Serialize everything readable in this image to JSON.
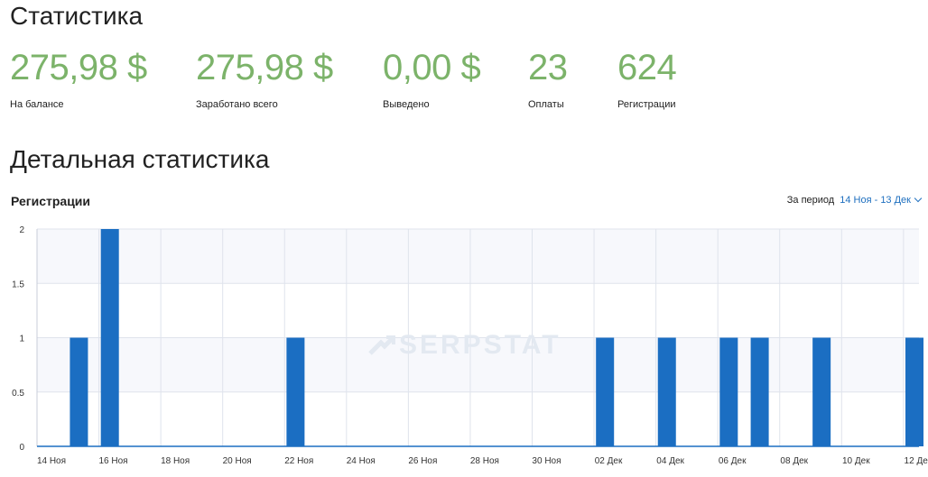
{
  "page": {
    "title": "Статистика"
  },
  "stats": [
    {
      "value": "275,98 $",
      "label": "На балансе"
    },
    {
      "value": "275,98 $",
      "label": "Заработано всего"
    },
    {
      "value": "0,00 $",
      "label": "Выведено"
    },
    {
      "value": "23",
      "label": "Оплаты"
    },
    {
      "value": "624",
      "label": "Регистрации"
    }
  ],
  "detail": {
    "title": "Детальная статистика"
  },
  "period": {
    "label": "За период",
    "range": "14 Ноя - 13 Дек"
  },
  "watermark": {
    "text": "SERPSTAT",
    "icon": "serpstat-logo-icon"
  },
  "colors": {
    "accent": "#7cb36a",
    "bar": "#1b6ec2",
    "link": "#1e6fbf",
    "plot_bg": "#f7f8fc",
    "grid": "#dfe3ec"
  },
  "chart_data": {
    "type": "bar",
    "title": "Регистрации",
    "x": [
      "14 Ноя",
      "15 Ноя",
      "16 Ноя",
      "17 Ноя",
      "18 Ноя",
      "19 Ноя",
      "20 Ноя",
      "21 Ноя",
      "22 Ноя",
      "23 Ноя",
      "24 Ноя",
      "25 Ноя",
      "26 Ноя",
      "27 Ноя",
      "28 Ноя",
      "29 Ноя",
      "30 Ноя",
      "01 Дек",
      "02 Дек",
      "03 Дек",
      "04 Дек",
      "05 Дек",
      "06 Дек",
      "07 Дек",
      "08 Дек",
      "09 Дек",
      "10 Дек",
      "11 Дек",
      "12 Дек"
    ],
    "values": [
      0,
      1,
      2,
      0,
      0,
      0,
      0,
      0,
      1,
      0,
      0,
      0,
      0,
      0,
      0,
      0,
      0,
      0,
      1,
      0,
      1,
      0,
      1,
      1,
      0,
      1,
      0,
      0,
      1
    ],
    "x_tick_labels": [
      "14 Ноя",
      "16 Ноя",
      "18 Ноя",
      "20 Ноя",
      "22 Ноя",
      "24 Ноя",
      "26 Ноя",
      "28 Ноя",
      "30 Ноя",
      "02 Дек",
      "04 Дек",
      "06 Дек",
      "08 Дек",
      "10 Дек",
      "12 Дек"
    ],
    "y_ticks": [
      "0",
      "0.5",
      "1",
      "1.5",
      "2"
    ],
    "ylim": [
      0,
      2
    ],
    "xlabel": "",
    "ylabel": "",
    "grid": true,
    "legend": "none"
  }
}
